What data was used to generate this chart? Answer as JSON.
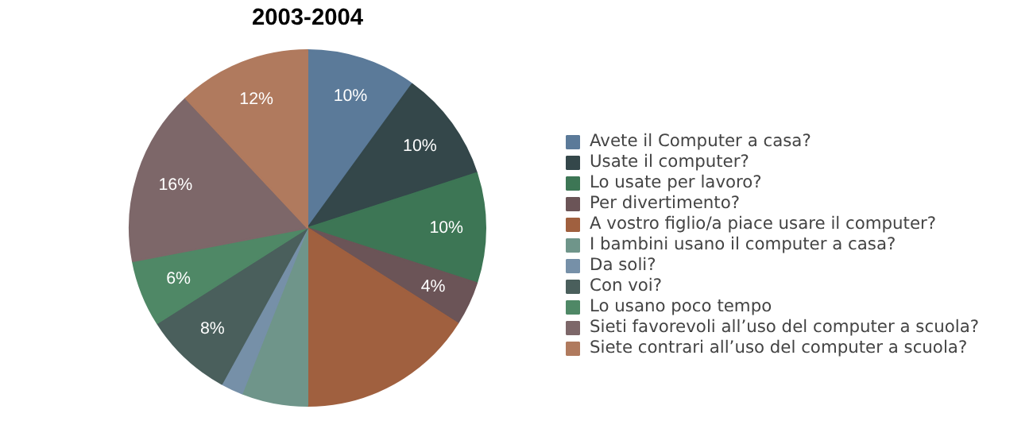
{
  "chart_data": {
    "type": "pie",
    "title": "2003-2004",
    "categories": [
      "Avete il Computer a casa?",
      "Usate il computer?",
      "Lo usate per lavoro?",
      "Per divertimento?",
      "A vostro figlio/a piace usare il computer?",
      "I bambini usano il computer a casa?",
      "Da soli?",
      "Con voi?",
      "Lo usano poco tempo",
      "Sieti favorevoli all’uso del computer a scuola?",
      "Siete contrari all’uso del computer a scuola?"
    ],
    "values": [
      10,
      10,
      10,
      4,
      16,
      6,
      2,
      8,
      6,
      16,
      12
    ],
    "value_labels": [
      "10%",
      "10%",
      "10%",
      "4%",
      null,
      null,
      null,
      "8%",
      "6%",
      "16%",
      "12%"
    ],
    "colors": [
      "#5b7a99",
      "#34474a",
      "#3d7655",
      "#6b5457",
      "#a0603f",
      "#6f958a",
      "#7690a8",
      "#4a5f5c",
      "#4f8866",
      "#7d6769",
      "#b07a5e"
    ],
    "legend": "right"
  }
}
